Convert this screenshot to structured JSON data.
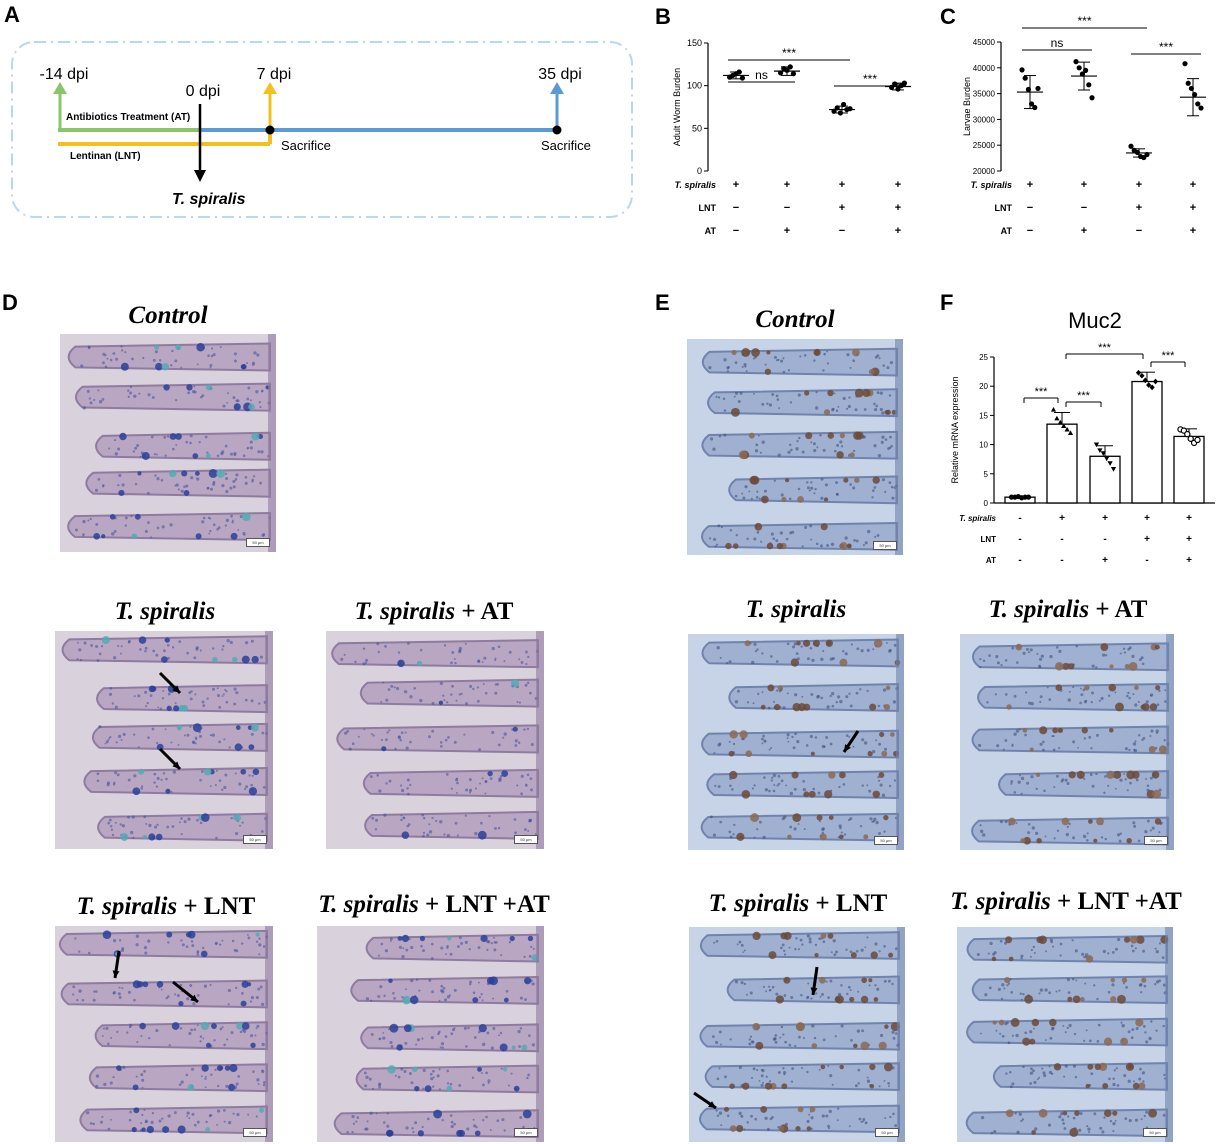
{
  "panels": {
    "A": "A",
    "B": "B",
    "C": "C",
    "D": "D",
    "E": "E",
    "F": "F"
  },
  "timeline": {
    "points": [
      {
        "label": "-14 dpi",
        "color": "#8bc56a"
      },
      {
        "label": "0 dpi",
        "color": "#000000"
      },
      {
        "label": "7 dpi",
        "color": "#f4c020"
      },
      {
        "label": "35 dpi",
        "color": "#5b9bd5"
      }
    ],
    "at_label": "Antibiotics Treatment (AT)",
    "lnt_label": "Lentinan (LNT)",
    "sacrifice_label": "Sacrifice",
    "infection_label": "T. spiralis",
    "colors": {
      "at": "#5b9bd5",
      "lnt": "#f4c020",
      "start": "#8bc56a",
      "box": "#bcd6ee"
    }
  },
  "row_labels": {
    "t_spiralis": "T. spiralis",
    "lnt": "LNT",
    "at": "AT"
  },
  "groups": [
    {
      "t_spiralis": "+",
      "lnt": "−",
      "at": "−"
    },
    {
      "t_spiralis": "+",
      "lnt": "−",
      "at": "+"
    },
    {
      "t_spiralis": "+",
      "lnt": "+",
      "at": "−"
    },
    {
      "t_spiralis": "+",
      "lnt": "+",
      "at": "+"
    }
  ],
  "groups_f": [
    {
      "t_spiralis": "-",
      "lnt": "-",
      "at": "-"
    },
    {
      "t_spiralis": "+",
      "lnt": "-",
      "at": "-"
    },
    {
      "t_spiralis": "+",
      "lnt": "-",
      "at": "+"
    },
    {
      "t_spiralis": "+",
      "lnt": "+",
      "at": "-"
    },
    {
      "t_spiralis": "+",
      "lnt": "+",
      "at": "+"
    }
  ],
  "chart_data": [
    {
      "id": "B",
      "type": "scatter",
      "title": "",
      "ylabel": "Adult Worm Burden",
      "ylim": [
        0,
        150
      ],
      "yticks": [
        0,
        50,
        100,
        150
      ],
      "series": [
        {
          "mean": 112,
          "sd": 4,
          "points": [
            110,
            112,
            114,
            116,
            109
          ]
        },
        {
          "mean": 117,
          "sd": 5,
          "points": [
            115,
            120,
            118,
            122,
            114
          ]
        },
        {
          "mean": 72,
          "sd": 4,
          "points": [
            70,
            74,
            68,
            78,
            72,
            73
          ]
        },
        {
          "mean": 99,
          "sd": 4,
          "points": [
            98,
            102,
            96,
            100,
            103
          ]
        }
      ],
      "comparisons": [
        {
          "from": 0,
          "to": 1,
          "label": "ns"
        },
        {
          "from": 0,
          "to": 2,
          "label": "***"
        },
        {
          "from": 2,
          "to": 3,
          "label": "***"
        }
      ]
    },
    {
      "id": "C",
      "type": "scatter",
      "title": "",
      "ylabel": "Larvae Burden",
      "ylim": [
        20000,
        45000
      ],
      "yticks": [
        20000,
        25000,
        30000,
        35000,
        40000,
        45000
      ],
      "series": [
        {
          "mean": 35300,
          "sd": 3200,
          "points": [
            39600,
            38000,
            35800,
            33000,
            32300,
            36000
          ]
        },
        {
          "mean": 38400,
          "sd": 2700,
          "points": [
            41200,
            40000,
            38800,
            39500,
            36700,
            34200
          ]
        },
        {
          "mean": 23500,
          "sd": 800,
          "points": [
            24800,
            24000,
            23600,
            22800,
            22600,
            23200
          ]
        },
        {
          "mean": 34300,
          "sd": 3600,
          "points": [
            40800,
            37000,
            36000,
            34800,
            33000,
            32200
          ]
        }
      ],
      "comparisons": [
        {
          "from": 0,
          "to": 1,
          "label": "ns"
        },
        {
          "from": 0,
          "to": 2,
          "label": "***"
        },
        {
          "from": 2,
          "to": 3,
          "label": "***"
        }
      ]
    },
    {
      "id": "F",
      "type": "bar",
      "title": "Muc2",
      "ylabel": "Relative mRNA expression",
      "ylim": [
        0,
        25
      ],
      "yticks": [
        0,
        5,
        10,
        15,
        20,
        25
      ],
      "series": [
        {
          "mean": 1.0,
          "sd": 0.2,
          "points": [
            1.0,
            1.0,
            1.1,
            0.9,
            1.0,
            1.0
          ],
          "marker": "circle-filled"
        },
        {
          "mean": 13.5,
          "sd": 2.0,
          "points": [
            16.0,
            14.5,
            13.8,
            13.2,
            12.6,
            12.0
          ],
          "marker": "triangle-filled"
        },
        {
          "mean": 8.0,
          "sd": 1.8,
          "points": [
            10.0,
            9.0,
            8.5,
            7.6,
            6.8,
            5.8
          ],
          "marker": "triangle-down-filled"
        },
        {
          "mean": 20.8,
          "sd": 1.6,
          "points": [
            22.3,
            21.8,
            21.0,
            20.2,
            19.8,
            20.8
          ],
          "marker": "diamond-filled"
        },
        {
          "mean": 11.4,
          "sd": 1.3,
          "points": [
            12.6,
            12.4,
            11.8,
            11.0,
            10.3,
            10.8
          ],
          "marker": "circle-open"
        }
      ],
      "comparisons": [
        {
          "from": 0,
          "to": 1,
          "label": "***"
        },
        {
          "from": 1,
          "to": 2,
          "label": "***"
        },
        {
          "from": 1,
          "to": 3,
          "label": "***"
        },
        {
          "from": 3,
          "to": 4,
          "label": "***"
        }
      ]
    }
  ],
  "microscopy": {
    "scale_label": "50 μm",
    "D": [
      {
        "prefix": "Control",
        "suffix": ""
      },
      {
        "prefix": "T. spiralis",
        "suffix": ""
      },
      {
        "prefix": "T. spiralis",
        "suffix": " + AT"
      },
      {
        "prefix": "T. spiralis",
        "suffix": " + LNT"
      },
      {
        "prefix": "T. spiralis",
        "suffix": " + LNT +AT"
      }
    ],
    "E": [
      {
        "prefix": "Control",
        "suffix": ""
      },
      {
        "prefix": "T. spiralis",
        "suffix": ""
      },
      {
        "prefix": "T. spiralis",
        "suffix": " + AT"
      },
      {
        "prefix": "T. spiralis",
        "suffix": " + LNT"
      },
      {
        "prefix": "T. spiralis",
        "suffix": " + LNT +AT"
      }
    ]
  }
}
